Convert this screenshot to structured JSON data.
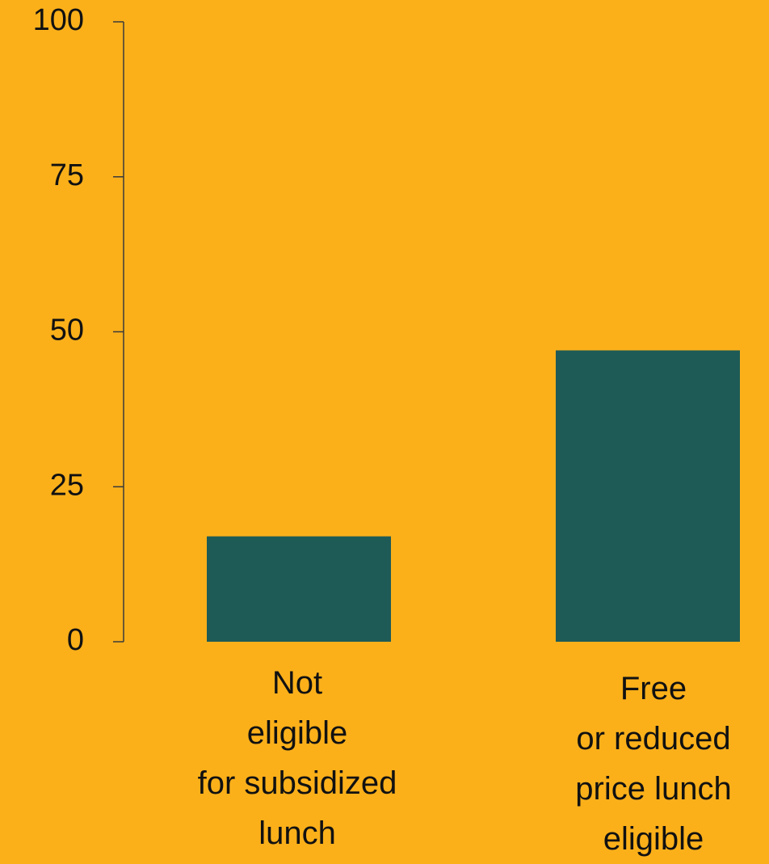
{
  "chart_data": {
    "type": "bar",
    "categories": [
      [
        "Not",
        "eligible",
        "for subsidized",
        "lunch"
      ],
      [
        "Free",
        "or reduced",
        "price lunch",
        "eligible"
      ]
    ],
    "values": [
      17,
      47
    ],
    "ylim": [
      0,
      100
    ],
    "yticks": [
      0,
      25,
      50,
      75,
      100
    ],
    "ytick_labels": [
      "0",
      "25",
      "50",
      "75",
      "100"
    ],
    "grid": false,
    "legend": "none",
    "colors": {
      "background": "#FBB01A",
      "bar": "#1E5B57",
      "axis": "#3a3a3a",
      "text": "#111111"
    }
  }
}
